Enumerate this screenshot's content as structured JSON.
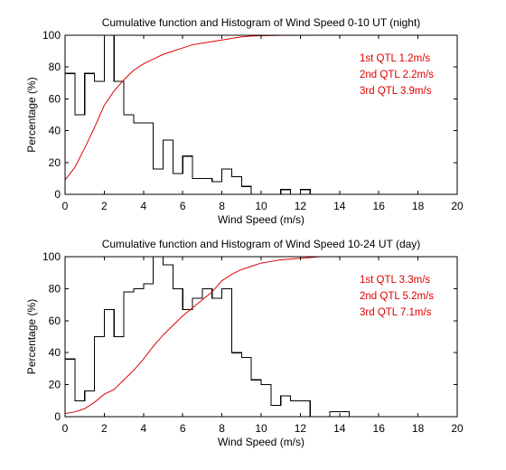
{
  "chart_data": [
    {
      "type": "line",
      "title": "Cumulative function and Histogram of Wind Speed 0-10 UT (night)",
      "xlabel": "Wind Speed (m/s)",
      "ylabel": "Percentage (%)",
      "xlim": [
        0,
        20
      ],
      "ylim": [
        0,
        100
      ],
      "xticks": [
        "0",
        "2",
        "4",
        "6",
        "8",
        "10",
        "12",
        "14",
        "16",
        "18",
        "20"
      ],
      "yticks": [
        "0",
        "20",
        "40",
        "60",
        "80",
        "100"
      ],
      "grid": false,
      "annotations": [
        "1st QTL 1.2m/s",
        "2nd QTL 2.2m/s",
        "3rd QTL 3.9m/s"
      ],
      "series": [
        {
          "kind": "histogram",
          "color": "#000000",
          "bin_width": 0.5,
          "bins_start": [
            0,
            0.5,
            1,
            1.5,
            2,
            2.5,
            3,
            3.5,
            4,
            4.5,
            5,
            5.5,
            6,
            6.5,
            7,
            7.5,
            8,
            8.5,
            9,
            9.5,
            10,
            10.5,
            11,
            11.5,
            12,
            12.5
          ],
          "values": [
            76,
            50,
            76,
            71,
            100,
            71,
            50,
            45,
            45,
            16,
            34,
            13,
            24,
            10,
            10,
            8,
            16,
            11,
            5,
            0,
            0,
            0,
            3,
            0,
            3,
            0
          ]
        },
        {
          "kind": "cumulative",
          "color": "#dd0000",
          "x": [
            0,
            0.5,
            1,
            1.5,
            2,
            2.5,
            3,
            3.5,
            4,
            4.5,
            5,
            5.5,
            6,
            6.5,
            7,
            7.5,
            8,
            8.5,
            9,
            9.5,
            10,
            11,
            12.5
          ],
          "y": [
            9,
            17,
            29,
            42,
            56,
            65,
            72,
            78,
            82,
            85,
            88,
            90,
            92,
            94,
            95,
            96,
            97,
            98,
            99,
            99.5,
            99.7,
            99.9,
            100
          ]
        }
      ]
    },
    {
      "type": "line",
      "title": "Cumulative function and Histogram of Wind Speed 10-24 UT (day)",
      "xlabel": "Wind Speed (m/s)",
      "ylabel": "Percentage (%)",
      "xlim": [
        0,
        20
      ],
      "ylim": [
        0,
        100
      ],
      "xticks": [
        "0",
        "2",
        "4",
        "6",
        "8",
        "10",
        "12",
        "14",
        "16",
        "18",
        "20"
      ],
      "yticks": [
        "0",
        "20",
        "40",
        "60",
        "80",
        "100"
      ],
      "grid": false,
      "annotations": [
        "1st QTL 3.3m/s",
        "2nd QTL 5.2m/s",
        "3rd QTL 7.1m/s"
      ],
      "series": [
        {
          "kind": "histogram",
          "color": "#000000",
          "bin_width": 0.5,
          "bins_start": [
            0,
            0.5,
            1,
            1.5,
            2,
            2.5,
            3,
            3.5,
            4,
            4.5,
            5,
            5.5,
            6,
            6.5,
            7,
            7.5,
            8,
            8.5,
            9,
            9.5,
            10,
            10.5,
            11,
            11.5,
            12,
            12.5,
            13,
            13.5,
            14,
            14.5,
            15
          ],
          "values": [
            36,
            10,
            16,
            50,
            67,
            50,
            78,
            80,
            83,
            100,
            95,
            80,
            67,
            74,
            80,
            74,
            80,
            40,
            37,
            23,
            20,
            7,
            13,
            10,
            10,
            0,
            0,
            3,
            3,
            0,
            0
          ]
        },
        {
          "kind": "cumulative",
          "color": "#dd0000",
          "x": [
            0,
            0.5,
            1,
            1.5,
            2,
            2.5,
            3,
            3.5,
            4,
            4.5,
            5,
            5.5,
            6,
            6.5,
            7,
            7.5,
            8,
            8.5,
            9,
            9.5,
            10,
            10.5,
            11,
            11.5,
            12,
            12.5,
            13,
            14
          ],
          "y": [
            2,
            3,
            5,
            9,
            14,
            17,
            23,
            29,
            36,
            44,
            51,
            57,
            63,
            68,
            73,
            78,
            85,
            89,
            92,
            94,
            96,
            97,
            98,
            98.5,
            99,
            99.5,
            100,
            100
          ]
        }
      ]
    }
  ]
}
